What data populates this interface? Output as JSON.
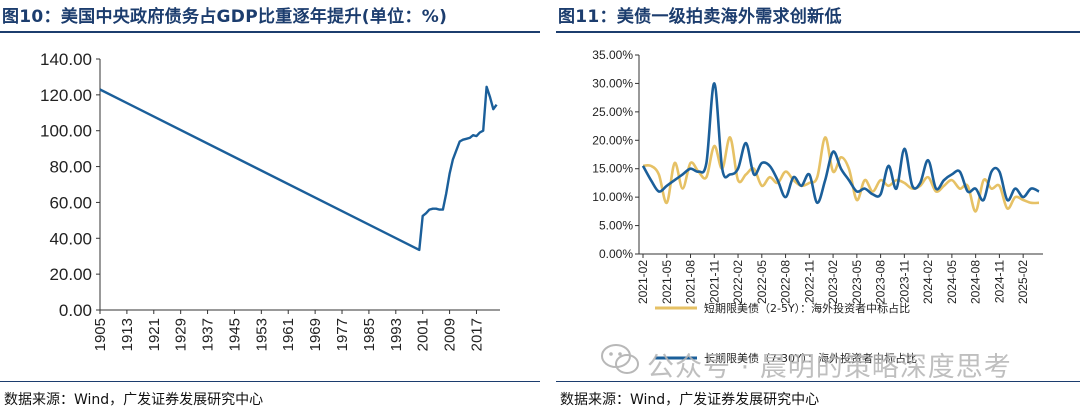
{
  "charts": [
    {
      "title": "图10：美国中央政府债务占GDP比重逐年提升(单位：%)",
      "source": "数据来源：Wind，广发证券发展研究中心"
    },
    {
      "title": "图11：美债一级拍卖海外需求创新低",
      "source": "数据来源：Wind，广发证券发展研究中心"
    }
  ],
  "watermark": "公众号 · 晨明的策略深度思考",
  "colors": {
    "navy": "#1c3d6e",
    "line_blue": "#1b5f9a",
    "gold": "#e6c165"
  },
  "chart_data": [
    {
      "type": "line",
      "title": "图10：美国中央政府债务占GDP比重逐年提升(单位：%)",
      "xlabel": "",
      "ylabel": "",
      "x_ticks": [
        "1905",
        "1913",
        "1921",
        "1929",
        "1937",
        "1945",
        "1953",
        "1961",
        "1969",
        "1977",
        "1985",
        "1993",
        "2001",
        "2009",
        "2017"
      ],
      "y_ticks": [
        "0.00",
        "20.00",
        "40.00",
        "60.00",
        "80.00",
        "100.00",
        "120.00",
        "140.00"
      ],
      "xlim": [
        1905,
        2024
      ],
      "ylim": [
        0,
        140
      ],
      "grid": false,
      "series": [
        {
          "x": [
            1905,
            2000,
            2001,
            2002,
            2003,
            2004,
            2005,
            2006,
            2007,
            2008,
            2009,
            2010,
            2011,
            2012,
            2013,
            2014,
            2015,
            2016,
            2017,
            2018,
            2019,
            2020,
            2021,
            2022,
            2023
          ],
          "values": [
            123,
            33.5,
            52.5,
            54,
            56,
            56.5,
            56.5,
            56,
            56,
            65,
            76,
            84,
            89,
            94,
            95,
            95.5,
            96,
            97.5,
            97,
            99,
            100,
            124.5,
            119,
            112,
            114.5
          ]
        }
      ]
    },
    {
      "type": "line",
      "title": "图11：美债一级拍卖海外需求创新低",
      "xlabel": "",
      "ylabel": "",
      "x_ticks": [
        "2021-02",
        "2021-05",
        "2021-08",
        "2021-11",
        "2022-02",
        "2022-05",
        "2022-08",
        "2022-11",
        "2023-02",
        "2023-05",
        "2023-08",
        "2023-11",
        "2024-02",
        "2024-05",
        "2024-08",
        "2024-11",
        "2025-02"
      ],
      "y_ticks": [
        "0.00%",
        "5.00%",
        "10.00%",
        "15.00%",
        "20.00%",
        "25.00%",
        "30.00%",
        "35.00%"
      ],
      "ylim": [
        0,
        35
      ],
      "grid": false,
      "legend_position": "bottom",
      "series": [
        {
          "name": "短期限美债（2-5Y）：海外投资者中标占比",
          "color": "#e6c165",
          "x": [
            "2021-02",
            "2021-03",
            "2021-04",
            "2021-05",
            "2021-06",
            "2021-07",
            "2021-08",
            "2021-09",
            "2021-10",
            "2021-11",
            "2021-12",
            "2022-01",
            "2022-02",
            "2022-03",
            "2022-04",
            "2022-05",
            "2022-06",
            "2022-07",
            "2022-08",
            "2022-09",
            "2022-10",
            "2022-11",
            "2022-12",
            "2023-01",
            "2023-02",
            "2023-03",
            "2023-04",
            "2023-05",
            "2023-06",
            "2023-07",
            "2023-08",
            "2023-09",
            "2023-10",
            "2023-11",
            "2023-12",
            "2024-01",
            "2024-02",
            "2024-03",
            "2024-04",
            "2024-05",
            "2024-06",
            "2024-07",
            "2024-08",
            "2024-09",
            "2024-10",
            "2024-11",
            "2024-12",
            "2025-01",
            "2025-02",
            "2025-03",
            "2025-04"
          ],
          "values": [
            15.5,
            15.5,
            14,
            9,
            16,
            11.5,
            16,
            14.5,
            13.5,
            19,
            15,
            20.5,
            13,
            14,
            15,
            12,
            13.5,
            12.5,
            14.5,
            13,
            12,
            12.5,
            13.5,
            20.5,
            14.5,
            17,
            15,
            9.5,
            13,
            11,
            13,
            12,
            13,
            12.5,
            11.5,
            12,
            13.5,
            11,
            12,
            13,
            11.5,
            12,
            7.5,
            13,
            11.5,
            12,
            8,
            10,
            9.5,
            9,
            9
          ]
        },
        {
          "name": "长期限美债（7-30Y）：海外投资者中标占比",
          "color": "#1b5f9a",
          "x": [
            "2021-02",
            "2021-03",
            "2021-04",
            "2021-05",
            "2021-06",
            "2021-07",
            "2021-08",
            "2021-09",
            "2021-10",
            "2021-11",
            "2021-12",
            "2022-01",
            "2022-02",
            "2022-03",
            "2022-04",
            "2022-05",
            "2022-06",
            "2022-07",
            "2022-08",
            "2022-09",
            "2022-10",
            "2022-11",
            "2022-12",
            "2023-01",
            "2023-02",
            "2023-03",
            "2023-04",
            "2023-05",
            "2023-06",
            "2023-07",
            "2023-08",
            "2023-09",
            "2023-10",
            "2023-11",
            "2023-12",
            "2024-01",
            "2024-02",
            "2024-03",
            "2024-04",
            "2024-05",
            "2024-06",
            "2024-07",
            "2024-08",
            "2024-09",
            "2024-10",
            "2024-11",
            "2024-12",
            "2025-01",
            "2025-02",
            "2025-03",
            "2025-04"
          ],
          "values": [
            15.5,
            13,
            11,
            12,
            13,
            14,
            15,
            14.5,
            16,
            30,
            15,
            14,
            15,
            19.5,
            14,
            16,
            15.5,
            13,
            10,
            13.5,
            12,
            14,
            9,
            13,
            18,
            15,
            13,
            11,
            11.5,
            10.5,
            10.5,
            15.5,
            11.5,
            18.5,
            12,
            12.5,
            16.5,
            11.5,
            13,
            14,
            14.5,
            11,
            11.5,
            9.5,
            14.5,
            14.5,
            9.5,
            11.5,
            10,
            11.5,
            11
          ]
        }
      ]
    }
  ]
}
